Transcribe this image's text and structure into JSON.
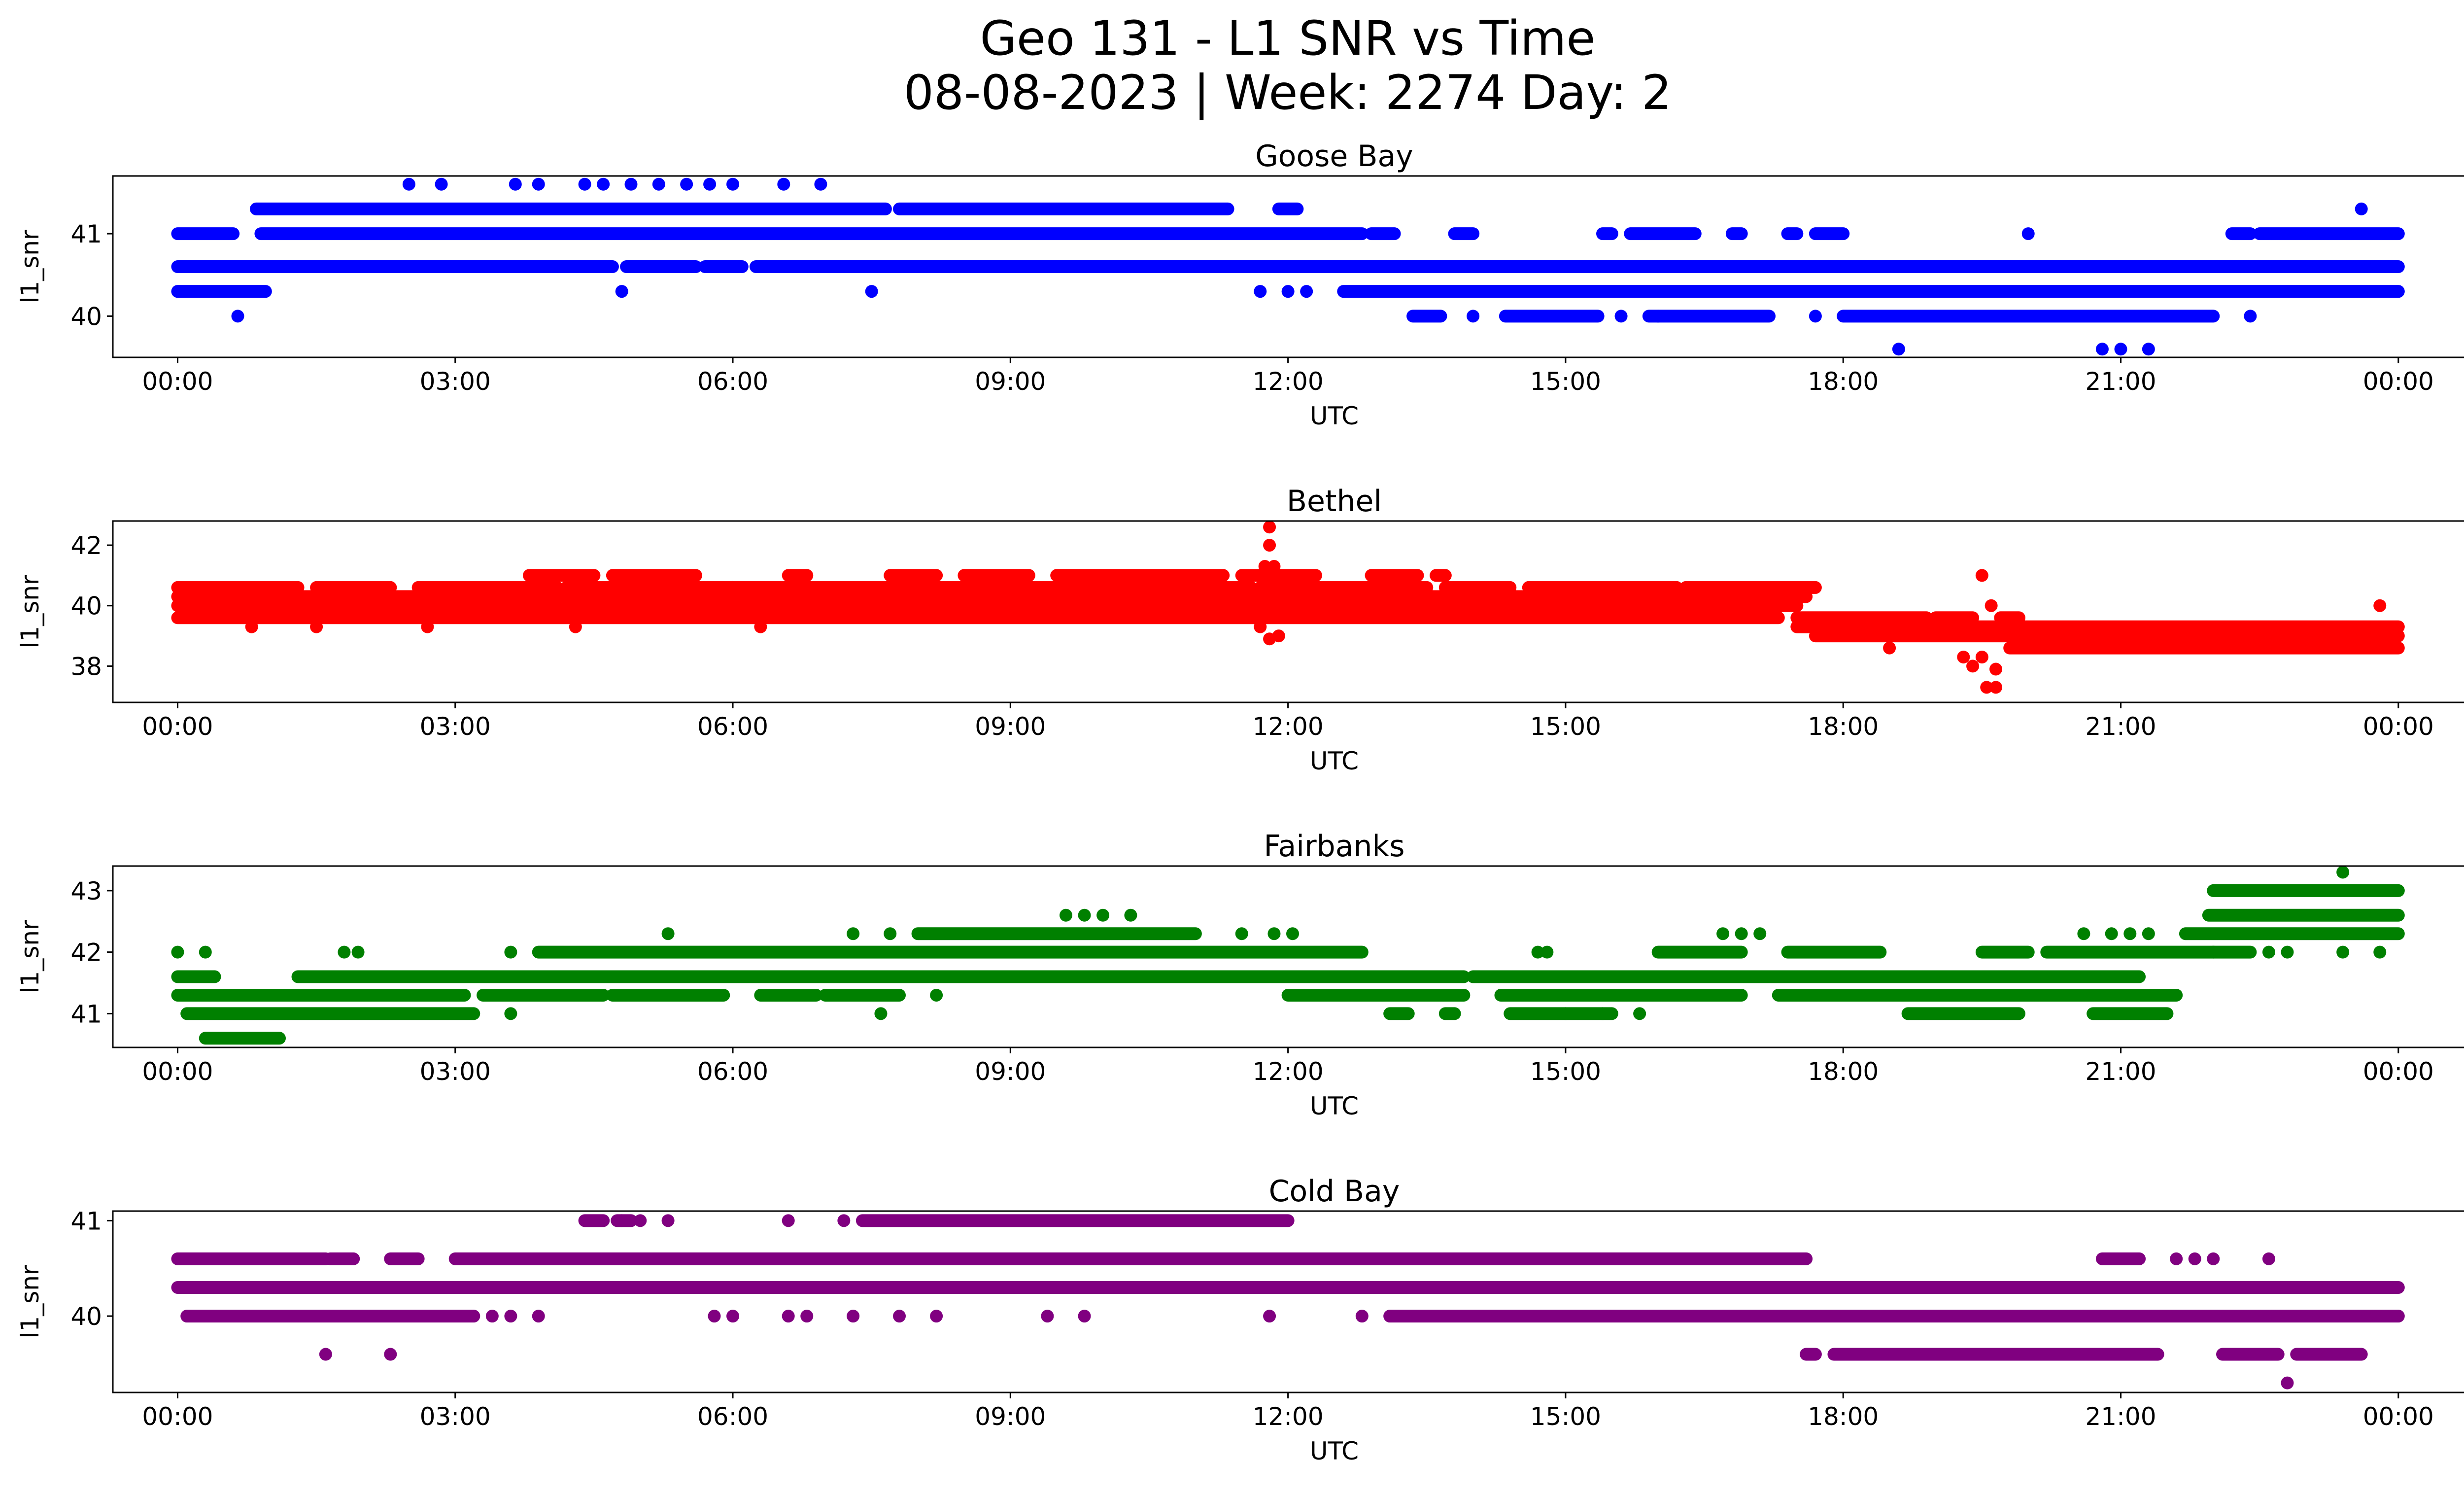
{
  "title_lines": [
    "Geo 131 - L1 SNR vs Time",
    "08-08-2023 | Week: 2274 Day: 2"
  ],
  "chart_data": [
    {
      "type": "scatter",
      "title": "Goose Bay",
      "color": "#0000ff",
      "xlabel": "UTC",
      "ylabel": "l1_snr",
      "x_ticks": [
        "00:00",
        "03:00",
        "06:00",
        "09:00",
        "12:00",
        "15:00",
        "18:00",
        "21:00",
        "00:00"
      ],
      "y_ticks": [
        40,
        41
      ],
      "ylim": [
        39.5,
        41.7
      ],
      "xlim_hours": [
        -0.7,
        25.7
      ],
      "bands": [
        {
          "y": 41.3,
          "segments": [
            [
              0.85,
              7.65
            ],
            [
              7.8,
              11.35
            ],
            [
              11.9,
              12.1
            ]
          ]
        },
        {
          "y": 41.0,
          "segments": [
            [
              0.0,
              0.6
            ],
            [
              0.9,
              12.8
            ],
            [
              12.9,
              13.15
            ],
            [
              13.8,
              14.0
            ],
            [
              15.4,
              15.5
            ],
            [
              15.7,
              16.4
            ],
            [
              16.8,
              16.9
            ],
            [
              17.4,
              17.5
            ],
            [
              17.7,
              18.0
            ],
            [
              22.2,
              22.4
            ],
            [
              22.5,
              24.0
            ]
          ]
        },
        {
          "y": 40.6,
          "segments": [
            [
              0.0,
              4.7
            ],
            [
              4.85,
              5.6
            ],
            [
              5.7,
              6.1
            ],
            [
              6.25,
              24.0
            ]
          ]
        },
        {
          "y": 40.3,
          "segments": [
            [
              0.0,
              0.95
            ],
            [
              12.6,
              24.0
            ]
          ]
        },
        {
          "y": 40.0,
          "segments": [
            [
              13.35,
              13.65
            ],
            [
              14.35,
              15.35
            ],
            [
              15.9,
              17.2
            ],
            [
              18.0,
              22.0
            ]
          ]
        }
      ],
      "points": [
        [
          0.65,
          40.0
        ],
        [
          2.5,
          41.6
        ],
        [
          2.85,
          41.6
        ],
        [
          3.65,
          41.6
        ],
        [
          3.9,
          41.6
        ],
        [
          4.4,
          41.6
        ],
        [
          4.6,
          41.6
        ],
        [
          4.9,
          41.6
        ],
        [
          5.2,
          41.6
        ],
        [
          5.5,
          41.6
        ],
        [
          5.75,
          41.6
        ],
        [
          6.0,
          41.6
        ],
        [
          6.55,
          41.6
        ],
        [
          6.95,
          41.6
        ],
        [
          4.8,
          40.3
        ],
        [
          7.5,
          40.3
        ],
        [
          11.7,
          40.3
        ],
        [
          12.0,
          40.3
        ],
        [
          12.2,
          40.3
        ],
        [
          14.0,
          40.0
        ],
        [
          15.6,
          40.0
        ],
        [
          16.0,
          40.0
        ],
        [
          17.7,
          40.0
        ],
        [
          18.6,
          39.6
        ],
        [
          20.0,
          41.0
        ],
        [
          20.8,
          39.6
        ],
        [
          21.0,
          39.6
        ],
        [
          21.3,
          39.6
        ],
        [
          22.4,
          40.0
        ],
        [
          23.6,
          41.3
        ]
      ]
    },
    {
      "type": "scatter",
      "title": "Bethel",
      "color": "#ff0000",
      "xlabel": "UTC",
      "ylabel": "l1_snr",
      "x_ticks": [
        "00:00",
        "03:00",
        "06:00",
        "09:00",
        "12:00",
        "15:00",
        "18:00",
        "21:00",
        "00:00"
      ],
      "y_ticks": [
        38,
        40,
        42
      ],
      "ylim": [
        36.8,
        42.8
      ],
      "xlim_hours": [
        -0.7,
        25.7
      ],
      "bands": [
        {
          "y": 41.0,
          "segments": [
            [
              3.8,
              4.5
            ],
            [
              4.7,
              5.6
            ],
            [
              6.6,
              6.8
            ],
            [
              7.7,
              8.2
            ],
            [
              8.5,
              9.2
            ],
            [
              9.5,
              11.3
            ],
            [
              11.5,
              12.3
            ],
            [
              12.9,
              13.4
            ],
            [
              13.6,
              13.7
            ]
          ]
        },
        {
          "y": 40.6,
          "segments": [
            [
              0.0,
              1.3
            ],
            [
              1.5,
              2.3
            ],
            [
              2.6,
              4.1
            ],
            [
              4.2,
              6.0
            ],
            [
              6.0,
              11.6
            ],
            [
              11.7,
              13.5
            ],
            [
              13.7,
              14.4
            ],
            [
              14.6,
              16.2
            ],
            [
              16.3,
              17.7
            ]
          ]
        },
        {
          "y": 40.3,
          "segments": [
            [
              0.0,
              17.6
            ]
          ]
        },
        {
          "y": 40.0,
          "segments": [
            [
              0.0,
              17.5
            ]
          ]
        },
        {
          "y": 39.6,
          "segments": [
            [
              0.0,
              17.3
            ],
            [
              17.5,
              18.9
            ],
            [
              19.0,
              19.4
            ],
            [
              19.7,
              19.9
            ]
          ]
        },
        {
          "y": 39.3,
          "segments": [
            [
              17.5,
              24.0
            ]
          ]
        },
        {
          "y": 39.0,
          "segments": [
            [
              17.7,
              24.0
            ]
          ]
        },
        {
          "y": 38.6,
          "segments": [
            [
              19.8,
              24.0
            ]
          ]
        }
      ],
      "points": [
        [
          11.8,
          42.6
        ],
        [
          11.8,
          42.0
        ],
        [
          11.75,
          41.3
        ],
        [
          11.85,
          41.3
        ],
        [
          11.7,
          39.3
        ],
        [
          11.9,
          39.0
        ],
        [
          11.8,
          38.9
        ],
        [
          0.8,
          39.3
        ],
        [
          1.5,
          39.3
        ],
        [
          2.7,
          39.3
        ],
        [
          4.3,
          39.3
        ],
        [
          6.3,
          39.3
        ],
        [
          19.5,
          41.0
        ],
        [
          19.6,
          40.0
        ],
        [
          19.3,
          38.3
        ],
        [
          19.5,
          38.3
        ],
        [
          19.4,
          38.0
        ],
        [
          19.65,
          37.9
        ],
        [
          19.55,
          37.3
        ],
        [
          19.65,
          37.3
        ],
        [
          18.5,
          38.6
        ],
        [
          23.8,
          40.0
        ]
      ]
    },
    {
      "type": "scatter",
      "title": "Fairbanks",
      "color": "#008000",
      "xlabel": "UTC",
      "ylabel": "l1_snr",
      "x_ticks": [
        "00:00",
        "03:00",
        "06:00",
        "09:00",
        "12:00",
        "15:00",
        "18:00",
        "21:00",
        "00:00"
      ],
      "y_ticks": [
        41,
        42,
        43
      ],
      "ylim": [
        40.45,
        43.4
      ],
      "xlim_hours": [
        -0.7,
        25.7
      ],
      "bands": [
        {
          "y": 43.0,
          "segments": [
            [
              22.0,
              24.0
            ]
          ]
        },
        {
          "y": 42.6,
          "segments": [
            [
              21.95,
              24.0
            ]
          ]
        },
        {
          "y": 42.3,
          "segments": [
            [
              8.0,
              11.0
            ],
            [
              21.7,
              24.0
            ]
          ]
        },
        {
          "y": 42.0,
          "segments": [
            [
              3.9,
              12.8
            ],
            [
              16.0,
              16.9
            ],
            [
              17.4,
              18.4
            ],
            [
              19.5,
              20.0
            ],
            [
              20.2,
              22.4
            ]
          ]
        },
        {
          "y": 41.6,
          "segments": [
            [
              0.0,
              0.4
            ],
            [
              1.3,
              13.9
            ],
            [
              14.0,
              21.2
            ]
          ]
        },
        {
          "y": 41.3,
          "segments": [
            [
              0.0,
              3.1
            ],
            [
              3.3,
              4.6
            ],
            [
              4.7,
              5.9
            ],
            [
              6.3,
              6.9
            ],
            [
              7.0,
              7.8
            ],
            [
              12.0,
              13.9
            ],
            [
              14.3,
              16.9
            ],
            [
              17.3,
              21.6
            ]
          ]
        },
        {
          "y": 41.0,
          "segments": [
            [
              0.1,
              3.2
            ],
            [
              13.1,
              13.3
            ],
            [
              13.7,
              13.8
            ],
            [
              14.4,
              15.5
            ],
            [
              18.7,
              19.9
            ],
            [
              20.7,
              21.5
            ]
          ]
        },
        {
          "y": 40.6,
          "segments": [
            [
              0.3,
              1.1
            ]
          ]
        }
      ],
      "points": [
        [
          0.0,
          42.0
        ],
        [
          0.3,
          42.0
        ],
        [
          1.8,
          42.0
        ],
        [
          1.95,
          42.0
        ],
        [
          3.6,
          42.0
        ],
        [
          3.6,
          41.0
        ],
        [
          5.3,
          42.3
        ],
        [
          7.3,
          42.3
        ],
        [
          7.6,
          41.0
        ],
        [
          7.7,
          42.3
        ],
        [
          8.2,
          41.3
        ],
        [
          9.6,
          42.6
        ],
        [
          9.8,
          42.6
        ],
        [
          10.0,
          42.6
        ],
        [
          10.3,
          42.6
        ],
        [
          11.5,
          42.3
        ],
        [
          11.85,
          42.3
        ],
        [
          12.05,
          42.3
        ],
        [
          14.7,
          42.0
        ],
        [
          14.8,
          42.0
        ],
        [
          15.0,
          41.0
        ],
        [
          15.4,
          41.0
        ],
        [
          15.8,
          41.0
        ],
        [
          16.7,
          42.3
        ],
        [
          16.9,
          42.3
        ],
        [
          17.1,
          42.3
        ],
        [
          20.6,
          42.3
        ],
        [
          20.9,
          42.3
        ],
        [
          21.1,
          42.3
        ],
        [
          21.3,
          42.3
        ],
        [
          22.0,
          42.0
        ],
        [
          22.6,
          42.0
        ],
        [
          22.8,
          42.0
        ],
        [
          23.4,
          43.3
        ],
        [
          23.4,
          42.0
        ],
        [
          23.8,
          42.0
        ]
      ]
    },
    {
      "type": "scatter",
      "title": "Cold Bay",
      "color": "#800080",
      "xlabel": "UTC",
      "ylabel": "l1_snr",
      "x_ticks": [
        "00:00",
        "03:00",
        "06:00",
        "09:00",
        "12:00",
        "15:00",
        "18:00",
        "21:00",
        "00:00"
      ],
      "y_ticks": [
        40,
        41
      ],
      "ylim": [
        39.2,
        41.1
      ],
      "xlim_hours": [
        -0.7,
        25.7
      ],
      "bands": [
        {
          "y": 41.0,
          "segments": [
            [
              4.4,
              4.6
            ],
            [
              4.75,
              4.9
            ],
            [
              7.4,
              12.0
            ]
          ]
        },
        {
          "y": 40.6,
          "segments": [
            [
              0.0,
              1.6
            ],
            [
              1.65,
              1.9
            ],
            [
              2.3,
              2.6
            ],
            [
              3.0,
              17.6
            ],
            [
              20.8,
              21.2
            ]
          ]
        },
        {
          "y": 40.3,
          "segments": [
            [
              0.0,
              24.0
            ]
          ]
        },
        {
          "y": 40.0,
          "segments": [
            [
              0.1,
              3.2
            ],
            [
              13.1,
              24.0
            ]
          ]
        },
        {
          "y": 39.6,
          "segments": [
            [
              17.6,
              17.7
            ],
            [
              17.9,
              21.4
            ],
            [
              22.1,
              22.7
            ],
            [
              22.9,
              23.6
            ]
          ]
        }
      ],
      "points": [
        [
          1.6,
          39.6
        ],
        [
          2.3,
          39.6
        ],
        [
          3.4,
          40.0
        ],
        [
          3.6,
          40.0
        ],
        [
          3.9,
          40.0
        ],
        [
          4.8,
          41.0
        ],
        [
          5.0,
          41.0
        ],
        [
          5.3,
          41.0
        ],
        [
          5.8,
          40.0
        ],
        [
          6.0,
          40.0
        ],
        [
          6.6,
          41.0
        ],
        [
          6.6,
          40.0
        ],
        [
          6.8,
          40.0
        ],
        [
          7.2,
          41.0
        ],
        [
          7.3,
          40.0
        ],
        [
          7.8,
          40.0
        ],
        [
          8.2,
          40.0
        ],
        [
          9.4,
          40.0
        ],
        [
          9.8,
          40.0
        ],
        [
          11.8,
          40.0
        ],
        [
          12.8,
          40.0
        ],
        [
          21.6,
          40.6
        ],
        [
          21.8,
          40.6
        ],
        [
          22.0,
          40.6
        ],
        [
          22.6,
          40.6
        ],
        [
          20.0,
          40.0
        ],
        [
          19.6,
          40.0
        ],
        [
          23.4,
          39.6
        ],
        [
          22.8,
          39.3
        ]
      ]
    }
  ]
}
